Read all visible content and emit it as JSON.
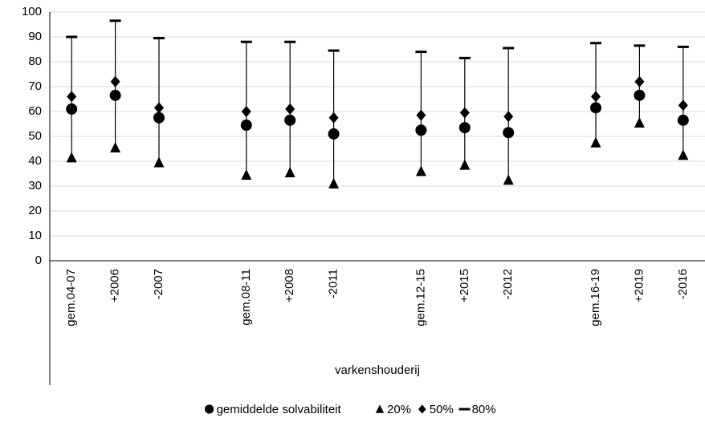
{
  "chart_data": {
    "type": "dot",
    "x_label": "varkenshouderij",
    "categories": [
      "gem.04-07",
      "+2006",
      "-2007",
      null,
      "gem.08-11",
      "+2008",
      "-2011",
      null,
      "gem.12-15",
      "+2015",
      "-2012",
      null,
      "gem.16-19",
      "+2019",
      "-2016"
    ],
    "ylim": [
      0,
      100
    ],
    "yticks": [
      0,
      10,
      20,
      30,
      40,
      50,
      60,
      70,
      80,
      90,
      100
    ],
    "grid": true,
    "series": [
      {
        "name": "gemiddelde solvabiliteit",
        "marker": "circle",
        "color": "#000000",
        "values": [
          61,
          66.5,
          57.5,
          null,
          54.5,
          56.5,
          51,
          null,
          52.5,
          53.5,
          51.5,
          null,
          61.5,
          66.5,
          56.5
        ]
      },
      {
        "name": "20%",
        "marker": "triangle",
        "color": "#000000",
        "values": [
          41.5,
          45.5,
          39.5,
          null,
          34.5,
          35.5,
          31,
          null,
          36,
          38.5,
          32.5,
          null,
          47.5,
          55.5,
          42.5
        ]
      },
      {
        "name": "50%",
        "marker": "diamond",
        "color": "#000000",
        "values": [
          66,
          72,
          61.5,
          null,
          60,
          61,
          57.5,
          null,
          58.5,
          59.5,
          58,
          null,
          66,
          72,
          62.5
        ]
      },
      {
        "name": "80%",
        "marker": "dash",
        "color": "#000000",
        "values": [
          90,
          96.5,
          89.5,
          null,
          88,
          88,
          84.5,
          null,
          84,
          81.5,
          85.5,
          null,
          87.5,
          86.5,
          86
        ]
      }
    ]
  }
}
